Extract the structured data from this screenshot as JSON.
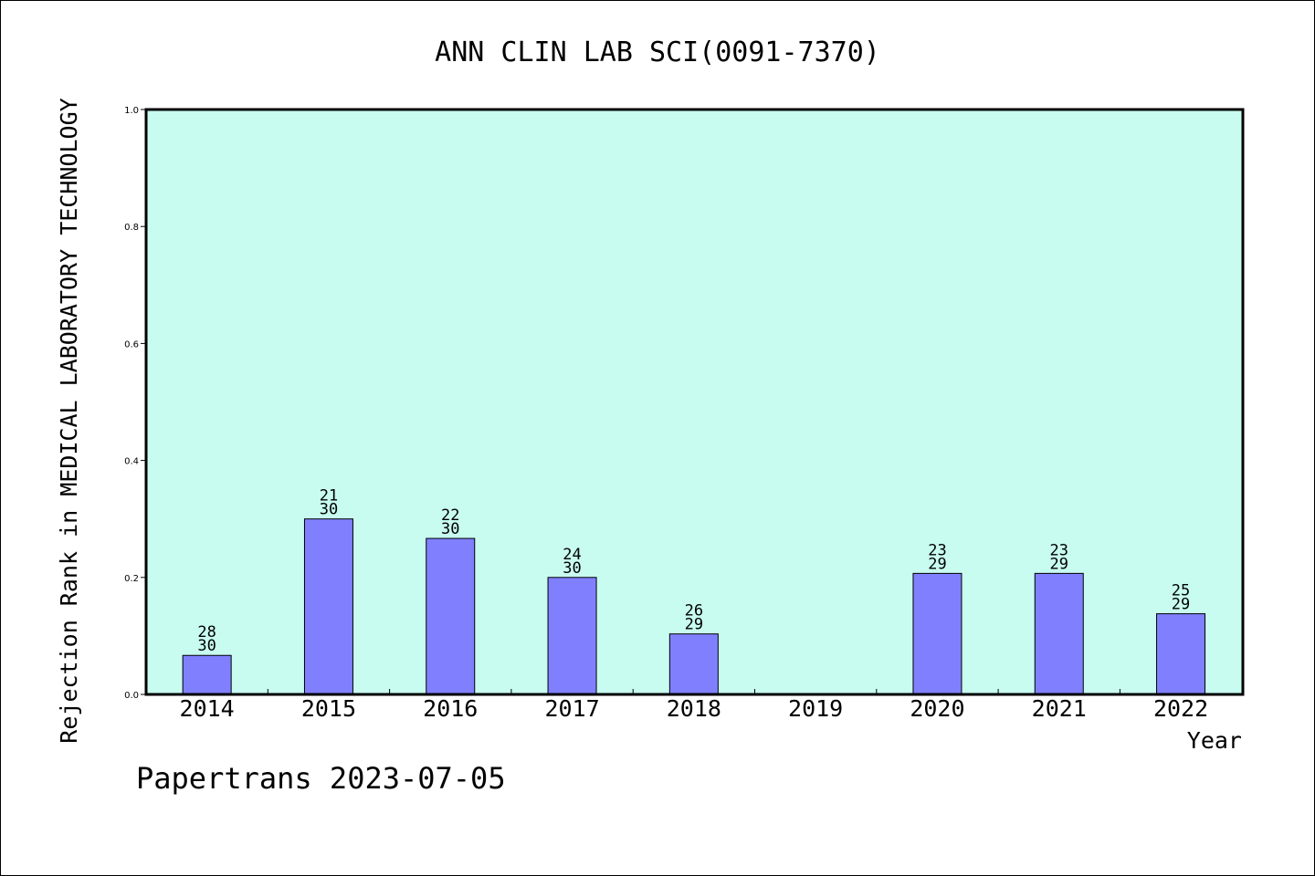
{
  "chart_data": {
    "type": "bar",
    "title": "ANN CLIN LAB SCI(0091-7370)",
    "xlabel": "Year",
    "ylabel": "Rejection Rank in MEDICAL LABORATORY TECHNOLOGY",
    "categories": [
      "2014",
      "2015",
      "2016",
      "2017",
      "2018",
      "2019",
      "2020",
      "2021",
      "2022"
    ],
    "values": [
      0.0667,
      0.3,
      0.2667,
      0.2,
      0.1034,
      null,
      0.2069,
      0.2069,
      0.1379
    ],
    "rank_labels": [
      [
        "28",
        "30"
      ],
      [
        "21",
        "30"
      ],
      [
        "22",
        "30"
      ],
      [
        "24",
        "30"
      ],
      [
        "26",
        "29"
      ],
      null,
      [
        "23",
        "29"
      ],
      [
        "23",
        "29"
      ],
      [
        "25",
        "29"
      ]
    ],
    "ylim": [
      0,
      1.0
    ],
    "yticks": [
      "0.0",
      "0.2",
      "0.4",
      "0.6",
      "0.8",
      "1.0"
    ],
    "grid": false,
    "colors": {
      "plot_background": "#c8fcf0",
      "bar_fill": "#8080ff",
      "bar_stroke": "#000000"
    }
  },
  "footer": {
    "credit": "Papertrans 2023-07-05"
  }
}
